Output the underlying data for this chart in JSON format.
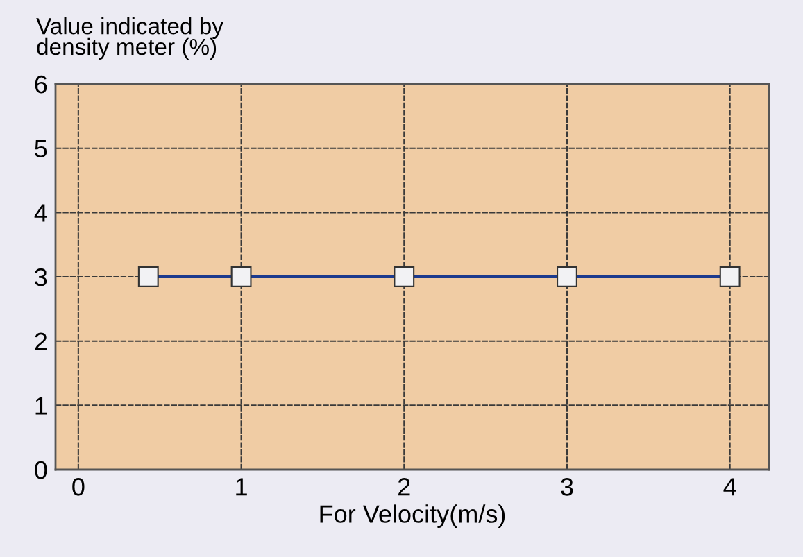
{
  "chart_data": {
    "type": "line",
    "xlabel": "For Velocity(m/s)",
    "ylabel": "Value indicated by\ndensity meter (%)",
    "x": [
      0.43,
      1,
      2,
      3,
      4
    ],
    "series": [
      {
        "color": "#1c3a8e",
        "values": [
          3,
          3,
          3,
          3,
          3
        ]
      }
    ],
    "xlim": [
      -0.14,
      4.24
    ],
    "xticks": [
      0,
      1,
      2,
      3,
      4
    ],
    "ylim": [
      0,
      6
    ],
    "yticks": [
      0,
      1,
      2,
      3,
      4,
      5,
      6
    ],
    "grid": true,
    "marker": "square",
    "line_style": "solid"
  }
}
